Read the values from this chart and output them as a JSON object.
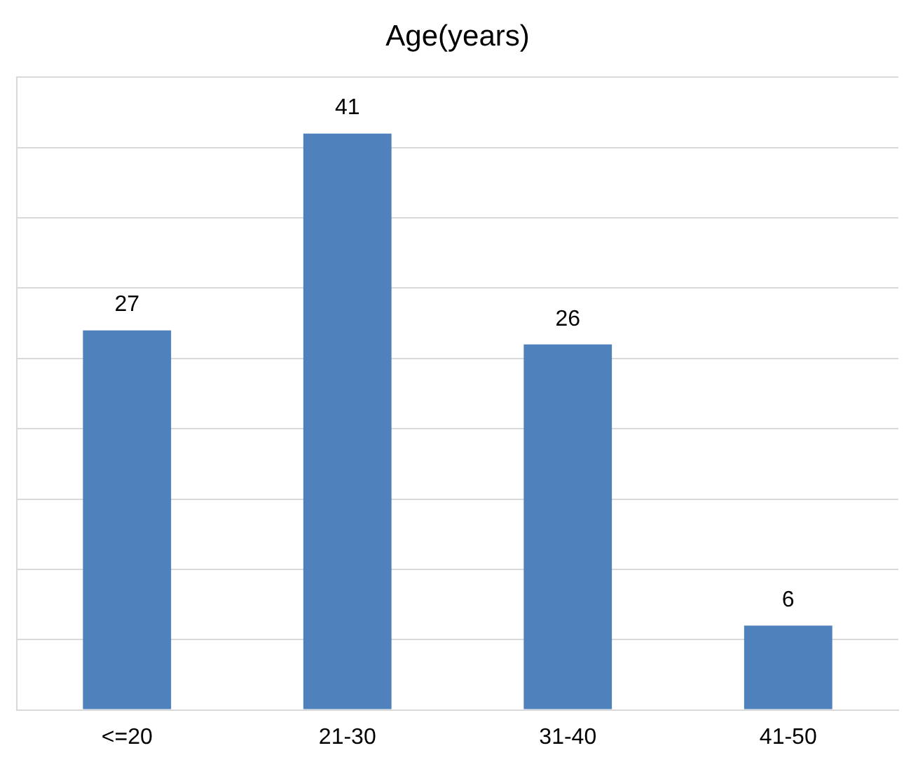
{
  "chart_data": {
    "type": "bar",
    "title": "Age(years)",
    "categories": [
      "<=20",
      "21-30",
      "31-40",
      "41-50"
    ],
    "values": [
      27,
      41,
      26,
      6
    ],
    "color": "#4f81bd",
    "grid": "y",
    "data_labels": true,
    "tick_labels": "x"
  }
}
